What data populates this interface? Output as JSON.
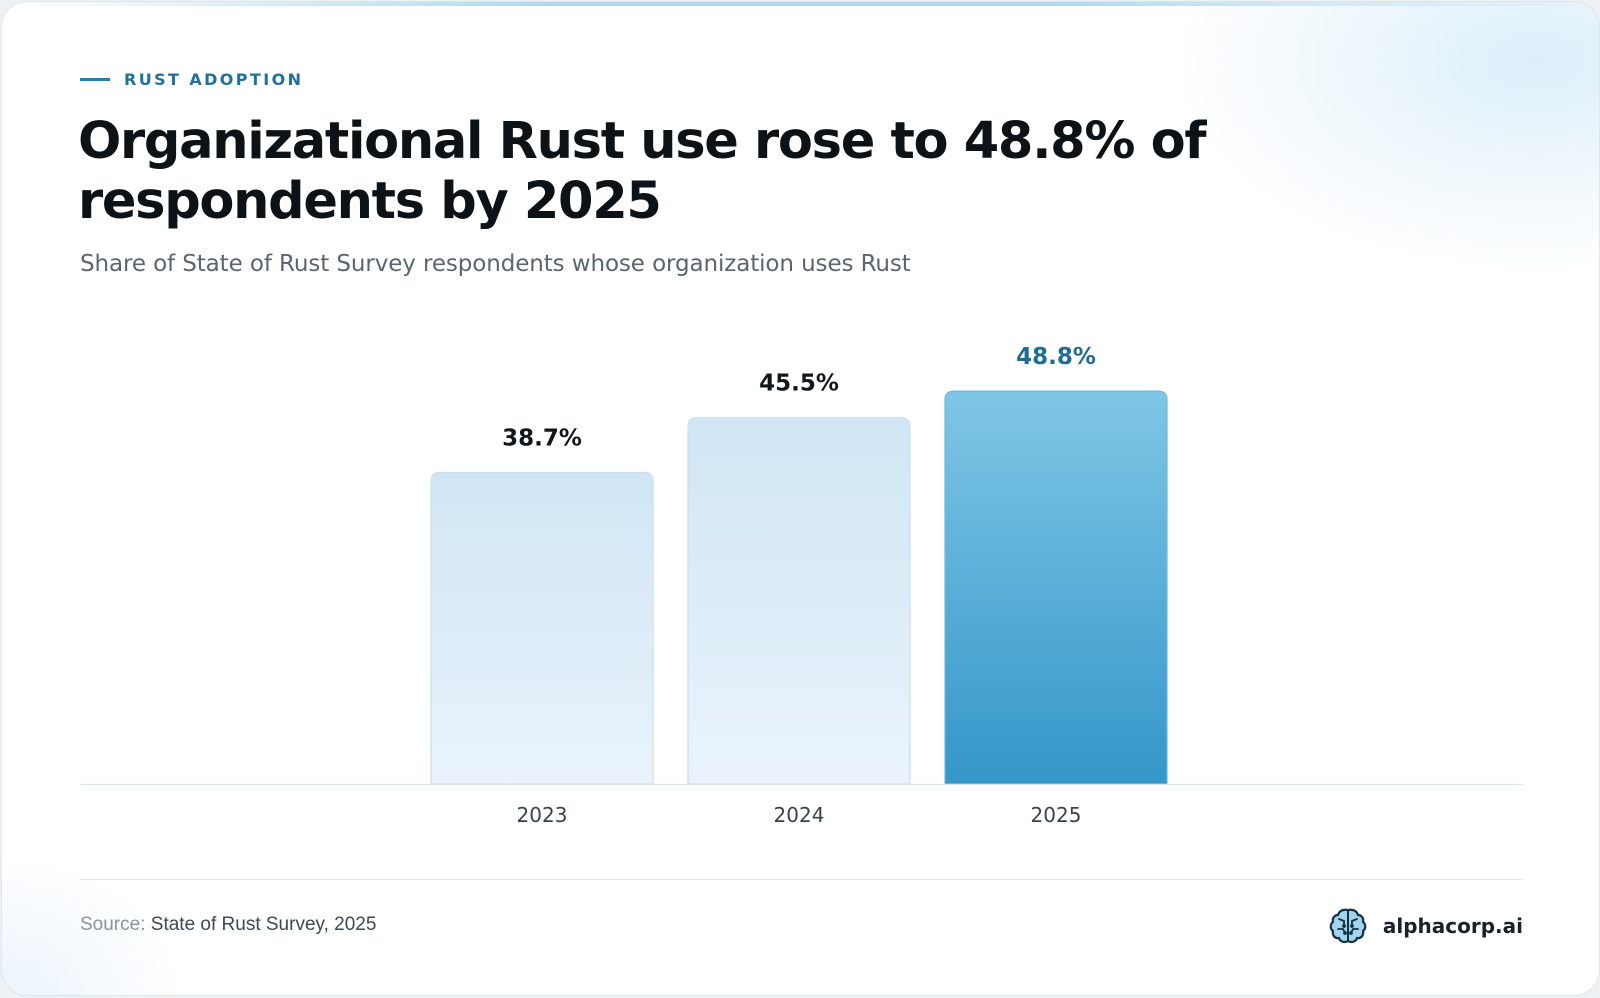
{
  "eyebrow": "RUST ADOPTION",
  "title": "Organizational Rust use rose to 48.8% of respondents by 2025",
  "subtitle": "Share of State of Rust Survey respondents whose organization uses Rust",
  "source": {
    "label": "Source:",
    "value": "State of Rust Survey, 2025"
  },
  "brand": {
    "name": "alphacorp.ai",
    "icon": "brain-icon"
  },
  "colors": {
    "accent": "#23709a",
    "highlight_label": "#1f6b94",
    "bar_light_top": "#d0e6f4",
    "bar_light_bottom": "#eaf3fb",
    "bar_highlight_top": "#7fc6e6",
    "bar_highlight_bottom": "#3497c9"
  },
  "chart_data": {
    "type": "bar",
    "categories": [
      "2023",
      "2024",
      "2025"
    ],
    "values": [
      38.7,
      45.5,
      48.8
    ],
    "value_labels": [
      "38.7%",
      "45.5%",
      "48.8%"
    ],
    "highlight": "2025",
    "ylim": [
      0,
      55
    ],
    "grid": false,
    "legend": "none",
    "xlabel": "",
    "ylabel": ""
  }
}
